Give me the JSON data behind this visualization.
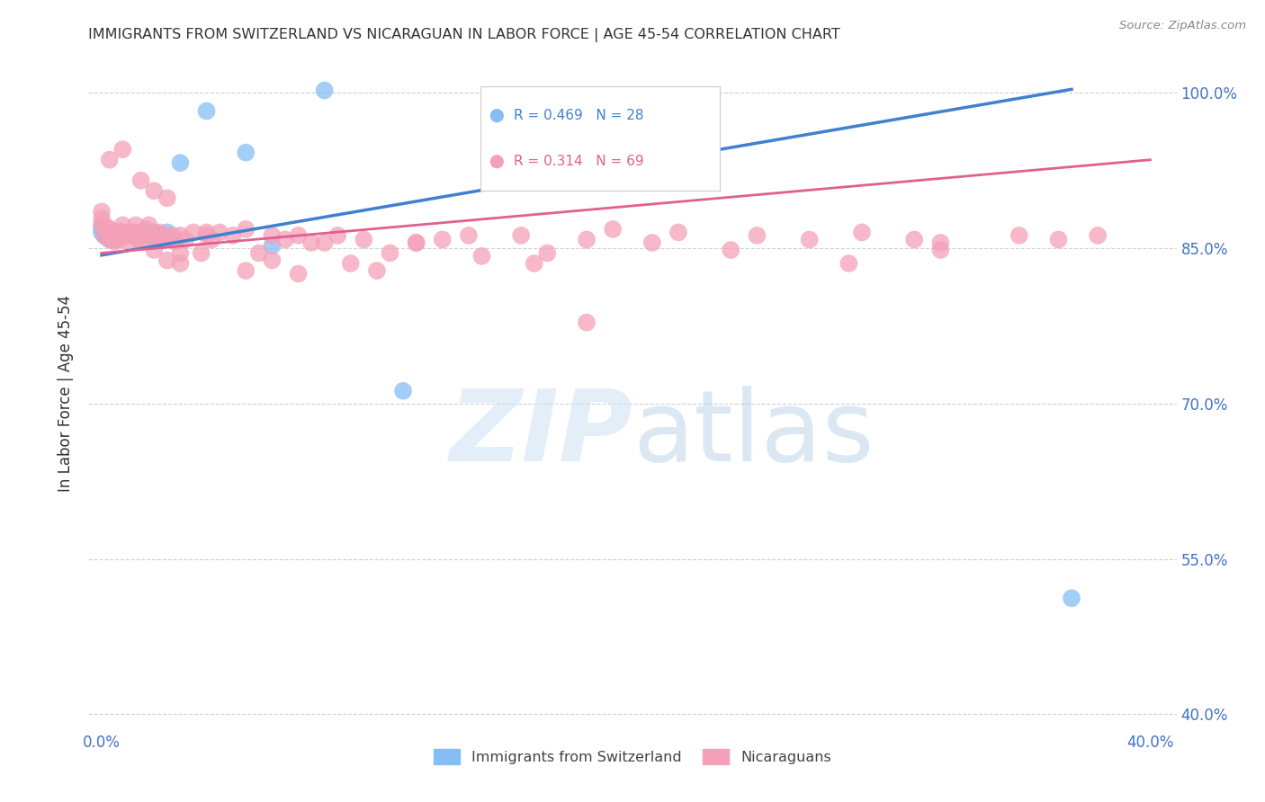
{
  "title": "IMMIGRANTS FROM SWITZERLAND VS NICARAGUAN IN LABOR FORCE | AGE 45-54 CORRELATION CHART",
  "source": "Source: ZipAtlas.com",
  "ylabel": "In Labor Force | Age 45-54",
  "xlim": [
    -0.005,
    0.41
  ],
  "ylim": [
    0.385,
    1.035
  ],
  "ytick_positions": [
    0.4,
    0.55,
    0.7,
    0.85,
    1.0
  ],
  "ytick_labels": [
    "40.0%",
    "55.0%",
    "70.0%",
    "85.0%",
    "100.0%"
  ],
  "xtick_positions": [
    0.0,
    0.05,
    0.1,
    0.15,
    0.2,
    0.25,
    0.3,
    0.35,
    0.4
  ],
  "xtick_labels": [
    "0.0%",
    "",
    "",
    "",
    "",
    "",
    "",
    "",
    "40.0%"
  ],
  "swiss_r": 0.469,
  "swiss_n": 28,
  "nic_r": 0.314,
  "nic_n": 69,
  "swiss_color": "#85bef5",
  "nic_color": "#f5a0b8",
  "swiss_line_color": "#4080d0",
  "nic_line_color": "#e06090",
  "swiss_x": [
    0.0,
    0.0,
    0.001,
    0.002,
    0.003,
    0.003,
    0.004,
    0.005,
    0.005,
    0.006,
    0.007,
    0.008,
    0.01,
    0.012,
    0.013,
    0.015,
    0.016,
    0.018,
    0.02,
    0.022,
    0.025,
    0.03,
    0.04,
    0.055,
    0.065,
    0.085,
    0.115,
    0.37
  ],
  "swiss_y": [
    0.865,
    0.87,
    0.862,
    0.86,
    0.858,
    0.865,
    0.862,
    0.858,
    0.864,
    0.862,
    0.866,
    0.862,
    0.862,
    0.865,
    0.862,
    0.862,
    0.865,
    0.862,
    0.865,
    0.862,
    0.865,
    0.932,
    0.982,
    0.942,
    0.852,
    1.002,
    0.712,
    0.512
  ],
  "nic_x": [
    0.0,
    0.0,
    0.0,
    0.001,
    0.002,
    0.003,
    0.003,
    0.004,
    0.005,
    0.005,
    0.006,
    0.007,
    0.008,
    0.008,
    0.01,
    0.01,
    0.011,
    0.012,
    0.013,
    0.014,
    0.015,
    0.015,
    0.016,
    0.017,
    0.018,
    0.02,
    0.02,
    0.021,
    0.022,
    0.023,
    0.025,
    0.025,
    0.027,
    0.028,
    0.03,
    0.03,
    0.032,
    0.035,
    0.038,
    0.04,
    0.042,
    0.045,
    0.05,
    0.055,
    0.06,
    0.065,
    0.07,
    0.075,
    0.08,
    0.09,
    0.1,
    0.11,
    0.12,
    0.13,
    0.14,
    0.16,
    0.17,
    0.185,
    0.195,
    0.21,
    0.22,
    0.25,
    0.27,
    0.29,
    0.31,
    0.32,
    0.35,
    0.365,
    0.38
  ],
  "nic_y": [
    0.872,
    0.878,
    0.885,
    0.862,
    0.87,
    0.858,
    0.868,
    0.862,
    0.856,
    0.865,
    0.862,
    0.858,
    0.865,
    0.872,
    0.856,
    0.865,
    0.862,
    0.865,
    0.872,
    0.858,
    0.856,
    0.865,
    0.862,
    0.868,
    0.872,
    0.848,
    0.862,
    0.858,
    0.865,
    0.862,
    0.838,
    0.858,
    0.862,
    0.856,
    0.845,
    0.862,
    0.858,
    0.865,
    0.845,
    0.862,
    0.858,
    0.865,
    0.862,
    0.868,
    0.845,
    0.862,
    0.858,
    0.862,
    0.855,
    0.862,
    0.858,
    0.845,
    0.855,
    0.858,
    0.862,
    0.862,
    0.845,
    0.858,
    0.868,
    0.855,
    0.865,
    0.862,
    0.858,
    0.865,
    0.858,
    0.855,
    0.862,
    0.858,
    0.862
  ],
  "nic_outlier_x": [
    0.003,
    0.008,
    0.015,
    0.02,
    0.025,
    0.03,
    0.04,
    0.055,
    0.065,
    0.075,
    0.085,
    0.095,
    0.105,
    0.12,
    0.145,
    0.165,
    0.185,
    0.24,
    0.285,
    0.32
  ],
  "nic_outlier_y": [
    0.935,
    0.945,
    0.915,
    0.905,
    0.898,
    0.835,
    0.865,
    0.828,
    0.838,
    0.825,
    0.855,
    0.835,
    0.828,
    0.855,
    0.842,
    0.835,
    0.778,
    0.848,
    0.835,
    0.848
  ],
  "swiss_trend_x": [
    0.0,
    0.37
  ],
  "swiss_trend_y": [
    0.843,
    1.003
  ],
  "nic_trend_x": [
    0.0,
    0.4
  ],
  "nic_trend_y": [
    0.845,
    0.935
  ],
  "background_color": "#ffffff",
  "grid_color": "#cccccc",
  "tick_color": "#4472c4",
  "title_color": "#333333",
  "axis_label_color": "#333333"
}
